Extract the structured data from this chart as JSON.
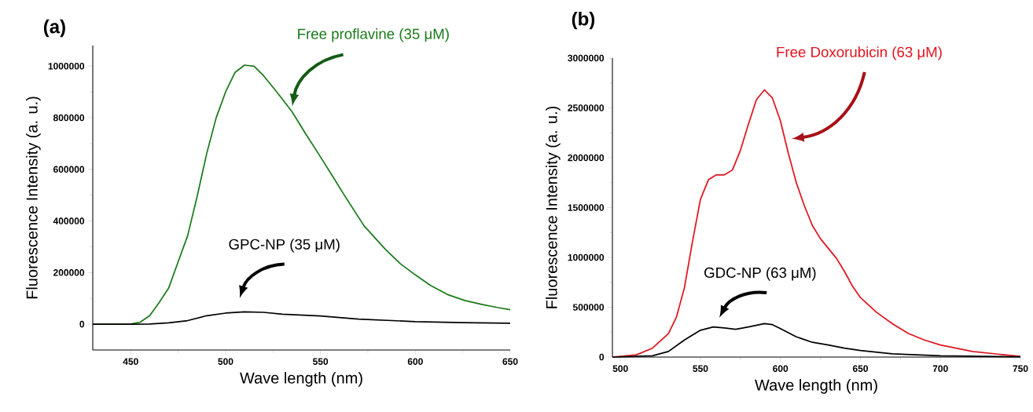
{
  "chart_data": [
    {
      "type": "line",
      "title": "(a)",
      "xlabel": "Wave length (nm)",
      "ylabel": "Fluorescence Intensity (a. u.)",
      "xlim": [
        430,
        650
      ],
      "ylim": [
        -100000,
        1080000
      ],
      "xticks": [
        450,
        500,
        550,
        600,
        650
      ],
      "yticks": [
        0,
        200000,
        400000,
        600000,
        800000,
        1000000
      ],
      "series": [
        {
          "name": "Free proflavine (35 μM)",
          "color": "#1a7a1a",
          "x": [
            430,
            440,
            450,
            455,
            460,
            465,
            470,
            475,
            480,
            485,
            490,
            495,
            500,
            505,
            510,
            515,
            520,
            527,
            535,
            542,
            549,
            556,
            563,
            573,
            584,
            592,
            600,
            608,
            617,
            626,
            635,
            643,
            650
          ],
          "values": [
            0,
            0,
            1000,
            8000,
            33000,
            84000,
            140000,
            242000,
            343000,
            495000,
            660000,
            799000,
            900000,
            976000,
            1004000,
            1000000,
            963000,
            900000,
            824000,
            740000,
            660000,
            578000,
            495000,
            381000,
            292000,
            235000,
            191000,
            150000,
            115000,
            92000,
            77000,
            65000,
            56000
          ]
        },
        {
          "name": "GPC-NP (35 μM)",
          "color": "#000000",
          "x": [
            430,
            450,
            460,
            470,
            480,
            490,
            500,
            510,
            520,
            530,
            550,
            570,
            600,
            625,
            650
          ],
          "values": [
            0,
            0,
            1000,
            5000,
            14000,
            33000,
            43000,
            48000,
            46000,
            39000,
            32000,
            20000,
            10000,
            6000,
            4000
          ]
        }
      ]
    },
    {
      "type": "line",
      "title": "(b)",
      "xlabel": "Wave length (nm)",
      "ylabel": "Fluorescence Intensity (a. u.)",
      "xlim": [
        495,
        750
      ],
      "ylim": [
        0,
        3000000
      ],
      "xticks": [
        500,
        550,
        600,
        650,
        700,
        750
      ],
      "yticks": [
        0,
        500000,
        1000000,
        1500000,
        2000000,
        2500000,
        3000000
      ],
      "series": [
        {
          "name": "Free Doxorubicin (63 μM)",
          "color": "#e0141e",
          "x": [
            495,
            510,
            520,
            530,
            535,
            540,
            545,
            550,
            555,
            560,
            565,
            570,
            575,
            580,
            585,
            590,
            595,
            600,
            605,
            610,
            615,
            620,
            625,
            630,
            635,
            640,
            645,
            650,
            660,
            670,
            680,
            690,
            700,
            720,
            740,
            750
          ],
          "values": [
            0,
            23000,
            89000,
            236000,
            400000,
            696000,
            1155000,
            1582000,
            1779000,
            1828000,
            1828000,
            1877000,
            2074000,
            2337000,
            2583000,
            2681000,
            2599000,
            2370000,
            2041000,
            1746000,
            1516000,
            1319000,
            1188000,
            1090000,
            991000,
            860000,
            712000,
            597000,
            450000,
            335000,
            236000,
            171000,
            121000,
            56000,
            23000,
            7000
          ]
        },
        {
          "name": "GDC-NP (63 μM)",
          "color": "#000000",
          "x": [
            495,
            520,
            530,
            540,
            550,
            558,
            565,
            572,
            580,
            590,
            595,
            600,
            610,
            620,
            630,
            640,
            650,
            670,
            700,
            750
          ],
          "values": [
            0,
            13000,
            56000,
            171000,
            269000,
            302000,
            292000,
            279000,
            302000,
            335000,
            325000,
            286000,
            203000,
            148000,
            121000,
            89000,
            66000,
            33000,
            13000,
            3000
          ]
        }
      ]
    }
  ]
}
